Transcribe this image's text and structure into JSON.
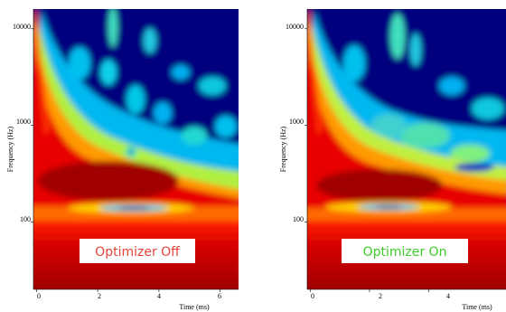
{
  "panels": [
    {
      "id": "left",
      "label": "Optimizer Off",
      "label_color": "#e8443a",
      "xlabel": "Time (ms)",
      "ylabel": "Frequency (Hz)",
      "xticks": [
        "0",
        "2",
        "4",
        "6"
      ],
      "yticks": [
        "10000",
        "1000",
        "100"
      ]
    },
    {
      "id": "right",
      "label": "Optimizer On",
      "label_color": "#3ecb2a",
      "xlabel": "Time (ms)",
      "ylabel": "Frequency (Hz)",
      "xticks": [
        "0",
        "2",
        "4"
      ],
      "yticks": [
        "10000",
        "1000",
        "100"
      ]
    }
  ],
  "chart_data": [
    {
      "type": "heatmap",
      "title": "",
      "xlabel": "Time (ms)",
      "ylabel": "Frequency (Hz)",
      "xlim": [
        -0.1,
        6.6
      ],
      "ylim": [
        20,
        16000
      ],
      "yscale": "log",
      "xticks": [
        0,
        2,
        4,
        6
      ],
      "yticks": [
        100,
        1000,
        10000
      ],
      "colormap": "jet",
      "annotation": "Optimizer Off"
    },
    {
      "type": "heatmap",
      "title": "",
      "xlabel": "Time (ms)",
      "ylabel": "Frequency (Hz)",
      "xlim": [
        -0.1,
        6.6
      ],
      "ylim": [
        20,
        16000
      ],
      "yscale": "log",
      "xticks": [
        0,
        2,
        4
      ],
      "yticks": [
        100,
        1000,
        10000
      ],
      "colormap": "jet",
      "annotation": "Optimizer On"
    }
  ]
}
